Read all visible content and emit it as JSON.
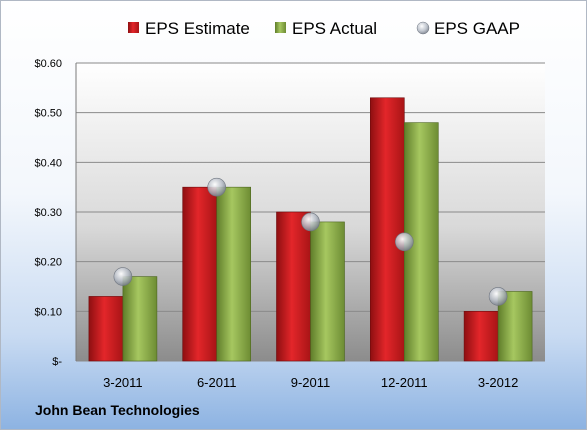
{
  "company": "John Bean Technologies",
  "colors": {
    "estimate": "#c0191c",
    "actual": "#8fb04a",
    "gaap": "#b8bec8"
  },
  "chart_data": {
    "type": "bar",
    "categories": [
      "3-2011",
      "6-2011",
      "9-2011",
      "12-2011",
      "3-2012"
    ],
    "series": [
      {
        "name": "EPS Estimate",
        "values": [
          0.13,
          0.35,
          0.3,
          0.53,
          0.1
        ]
      },
      {
        "name": "EPS Actual",
        "values": [
          0.17,
          0.35,
          0.28,
          0.48,
          0.14
        ]
      },
      {
        "name": "EPS GAAP",
        "type": "scatter",
        "values": [
          0.17,
          0.35,
          0.28,
          0.24,
          0.13
        ]
      }
    ],
    "ylim": [
      0,
      0.6
    ],
    "yticks": [
      0,
      0.1,
      0.2,
      0.3,
      0.4,
      0.5,
      0.6
    ],
    "ytick_labels": [
      "$-",
      "$0.10",
      "$0.20",
      "$0.30",
      "$0.40",
      "$0.50",
      "$0.60"
    ],
    "grid": true,
    "legend_position": "top"
  }
}
